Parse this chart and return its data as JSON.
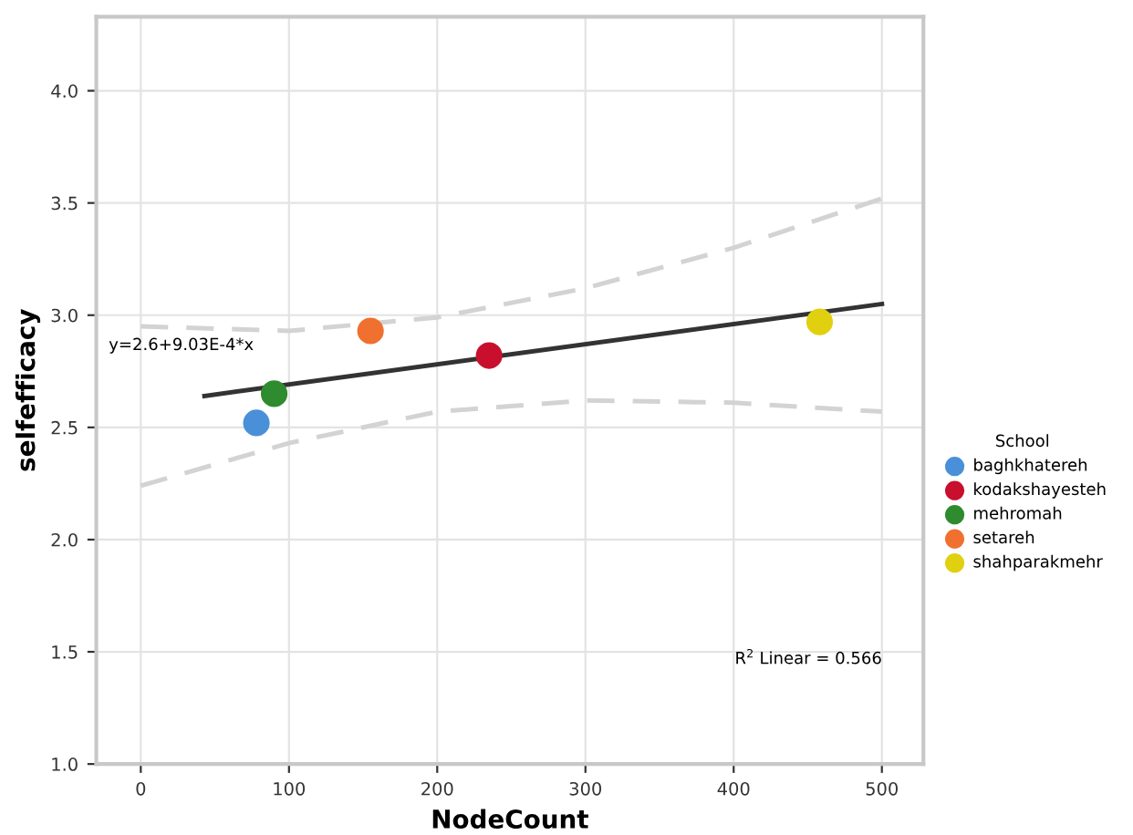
{
  "chart_data": {
    "type": "scatter",
    "xlabel": "NodeCount",
    "ylabel": "selfefficacy",
    "legend_title": "School",
    "legend": "right",
    "grid": true,
    "marker": "circle",
    "xlim": [
      -30,
      528
    ],
    "xticks": [
      0,
      100,
      200,
      300,
      400,
      500
    ],
    "ylim": [
      1.0,
      4.33
    ],
    "yticks": [
      {
        "value": 1.0,
        "label": "1.0"
      },
      {
        "value": 1.5,
        "label": "1.5"
      },
      {
        "value": 2.0,
        "label": "2.0"
      },
      {
        "value": 2.5,
        "label": "2.5"
      },
      {
        "value": 3.0,
        "label": "3.0"
      },
      {
        "value": 3.5,
        "label": "3.5"
      },
      {
        "value": 4.0,
        "label": "4.0"
      }
    ],
    "annotations": [
      "y=2.6+9.03E-4*x",
      "R$^{2}$ Linear = 0.566"
    ],
    "series": [
      {
        "type": "line",
        "color": "#333333",
        "line_style": "solid",
        "marker": "none",
        "x": [
          43,
          500
        ],
        "values": [
          2.64,
          3.05
        ]
      },
      {
        "type": "line",
        "color": "#d3d3d3",
        "line_style": "dashed",
        "marker": "none",
        "x": [
          0,
          100,
          200,
          300,
          400,
          500
        ],
        "values": [
          2.95,
          2.93,
          2.99,
          3.12,
          3.3,
          3.52
        ]
      },
      {
        "type": "line",
        "color": "#d3d3d3",
        "line_style": "dashed",
        "marker": "none",
        "x": [
          0,
          100,
          200,
          300,
          400,
          500
        ],
        "values": [
          2.24,
          2.43,
          2.57,
          2.62,
          2.61,
          2.57
        ]
      },
      {
        "name": "baghkhatereh",
        "color": "#4a90d9",
        "x": [
          78
        ],
        "values": [
          2.52
        ]
      },
      {
        "name": "kodakshayesteh",
        "color": "#c8102e",
        "x": [
          235
        ],
        "values": [
          2.82
        ]
      },
      {
        "name": "mehromah",
        "color": "#2e8b2e",
        "x": [
          90
        ],
        "values": [
          2.65
        ]
      },
      {
        "name": "setareh",
        "color": "#f07030",
        "x": [
          155
        ],
        "values": [
          2.93
        ]
      },
      {
        "name": "shahparakmehr",
        "color": "#e0d010",
        "x": [
          458
        ],
        "values": [
          2.97
        ]
      }
    ]
  }
}
